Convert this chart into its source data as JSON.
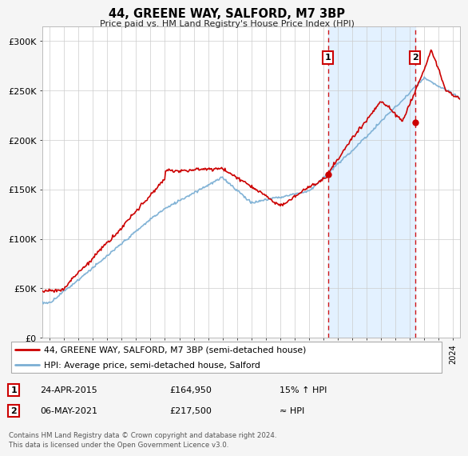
{
  "title": "44, GREENE WAY, SALFORD, M7 3BP",
  "subtitle": "Price paid vs. HM Land Registry's House Price Index (HPI)",
  "footer": "Contains HM Land Registry data © Crown copyright and database right 2024.\nThis data is licensed under the Open Government Licence v3.0.",
  "legend_line1": "44, GREENE WAY, SALFORD, M7 3BP (semi-detached house)",
  "legend_line2": "HPI: Average price, semi-detached house, Salford",
  "annotation1_date": "24-APR-2015",
  "annotation1_price": "£164,950",
  "annotation1_hpi": "15% ↑ HPI",
  "annotation2_date": "06-MAY-2021",
  "annotation2_price": "£217,500",
  "annotation2_hpi": "≈ HPI",
  "price_color": "#cc0000",
  "hpi_color": "#7bafd4",
  "fig_bg_color": "#f5f5f5",
  "plot_bg_color": "#ffffff",
  "shade_color": "#ddeeff",
  "yticks": [
    0,
    50000,
    100000,
    150000,
    200000,
    250000,
    300000
  ],
  "ytick_labels": [
    "£0",
    "£50K",
    "£100K",
    "£150K",
    "£200K",
    "£250K",
    "£300K"
  ],
  "ylim": [
    0,
    315000
  ],
  "marker1_x": 2015.31,
  "marker1_y": 164950,
  "marker2_x": 2021.35,
  "marker2_y": 217500,
  "vline1_x": 2015.31,
  "vline2_x": 2021.35,
  "xmin": 1995.5,
  "xmax": 2024.5
}
